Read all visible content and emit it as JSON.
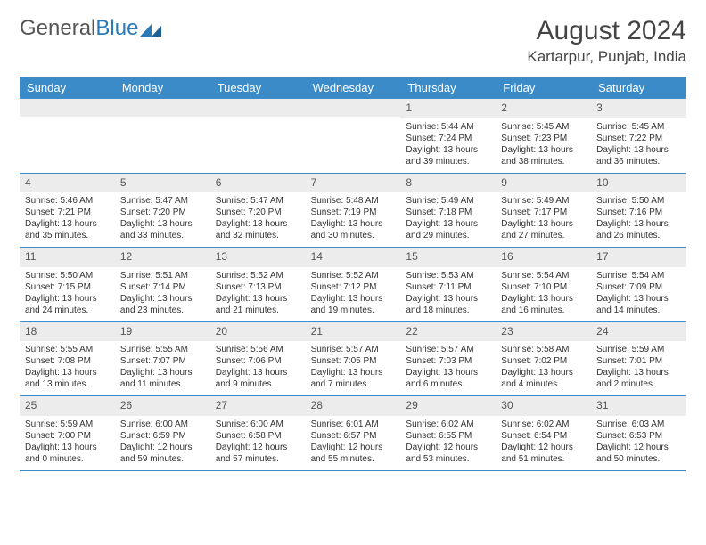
{
  "logo": {
    "text1": "General",
    "text2": "Blue"
  },
  "title": "August 2024",
  "location": "Kartarpur, Punjab, India",
  "colors": {
    "header_bg": "#3b8bc9",
    "header_text": "#ffffff",
    "daynum_bg": "#ececec",
    "week_border": "#3b8bc9",
    "logo_blue": "#2a7ab8"
  },
  "day_headers": [
    "Sunday",
    "Monday",
    "Tuesday",
    "Wednesday",
    "Thursday",
    "Friday",
    "Saturday"
  ],
  "weeks": [
    [
      {
        "day": "",
        "sunrise": "",
        "sunset": "",
        "daylight": ""
      },
      {
        "day": "",
        "sunrise": "",
        "sunset": "",
        "daylight": ""
      },
      {
        "day": "",
        "sunrise": "",
        "sunset": "",
        "daylight": ""
      },
      {
        "day": "",
        "sunrise": "",
        "sunset": "",
        "daylight": ""
      },
      {
        "day": "1",
        "sunrise": "Sunrise: 5:44 AM",
        "sunset": "Sunset: 7:24 PM",
        "daylight": "Daylight: 13 hours and 39 minutes."
      },
      {
        "day": "2",
        "sunrise": "Sunrise: 5:45 AM",
        "sunset": "Sunset: 7:23 PM",
        "daylight": "Daylight: 13 hours and 38 minutes."
      },
      {
        "day": "3",
        "sunrise": "Sunrise: 5:45 AM",
        "sunset": "Sunset: 7:22 PM",
        "daylight": "Daylight: 13 hours and 36 minutes."
      }
    ],
    [
      {
        "day": "4",
        "sunrise": "Sunrise: 5:46 AM",
        "sunset": "Sunset: 7:21 PM",
        "daylight": "Daylight: 13 hours and 35 minutes."
      },
      {
        "day": "5",
        "sunrise": "Sunrise: 5:47 AM",
        "sunset": "Sunset: 7:20 PM",
        "daylight": "Daylight: 13 hours and 33 minutes."
      },
      {
        "day": "6",
        "sunrise": "Sunrise: 5:47 AM",
        "sunset": "Sunset: 7:20 PM",
        "daylight": "Daylight: 13 hours and 32 minutes."
      },
      {
        "day": "7",
        "sunrise": "Sunrise: 5:48 AM",
        "sunset": "Sunset: 7:19 PM",
        "daylight": "Daylight: 13 hours and 30 minutes."
      },
      {
        "day": "8",
        "sunrise": "Sunrise: 5:49 AM",
        "sunset": "Sunset: 7:18 PM",
        "daylight": "Daylight: 13 hours and 29 minutes."
      },
      {
        "day": "9",
        "sunrise": "Sunrise: 5:49 AM",
        "sunset": "Sunset: 7:17 PM",
        "daylight": "Daylight: 13 hours and 27 minutes."
      },
      {
        "day": "10",
        "sunrise": "Sunrise: 5:50 AM",
        "sunset": "Sunset: 7:16 PM",
        "daylight": "Daylight: 13 hours and 26 minutes."
      }
    ],
    [
      {
        "day": "11",
        "sunrise": "Sunrise: 5:50 AM",
        "sunset": "Sunset: 7:15 PM",
        "daylight": "Daylight: 13 hours and 24 minutes."
      },
      {
        "day": "12",
        "sunrise": "Sunrise: 5:51 AM",
        "sunset": "Sunset: 7:14 PM",
        "daylight": "Daylight: 13 hours and 23 minutes."
      },
      {
        "day": "13",
        "sunrise": "Sunrise: 5:52 AM",
        "sunset": "Sunset: 7:13 PM",
        "daylight": "Daylight: 13 hours and 21 minutes."
      },
      {
        "day": "14",
        "sunrise": "Sunrise: 5:52 AM",
        "sunset": "Sunset: 7:12 PM",
        "daylight": "Daylight: 13 hours and 19 minutes."
      },
      {
        "day": "15",
        "sunrise": "Sunrise: 5:53 AM",
        "sunset": "Sunset: 7:11 PM",
        "daylight": "Daylight: 13 hours and 18 minutes."
      },
      {
        "day": "16",
        "sunrise": "Sunrise: 5:54 AM",
        "sunset": "Sunset: 7:10 PM",
        "daylight": "Daylight: 13 hours and 16 minutes."
      },
      {
        "day": "17",
        "sunrise": "Sunrise: 5:54 AM",
        "sunset": "Sunset: 7:09 PM",
        "daylight": "Daylight: 13 hours and 14 minutes."
      }
    ],
    [
      {
        "day": "18",
        "sunrise": "Sunrise: 5:55 AM",
        "sunset": "Sunset: 7:08 PM",
        "daylight": "Daylight: 13 hours and 13 minutes."
      },
      {
        "day": "19",
        "sunrise": "Sunrise: 5:55 AM",
        "sunset": "Sunset: 7:07 PM",
        "daylight": "Daylight: 13 hours and 11 minutes."
      },
      {
        "day": "20",
        "sunrise": "Sunrise: 5:56 AM",
        "sunset": "Sunset: 7:06 PM",
        "daylight": "Daylight: 13 hours and 9 minutes."
      },
      {
        "day": "21",
        "sunrise": "Sunrise: 5:57 AM",
        "sunset": "Sunset: 7:05 PM",
        "daylight": "Daylight: 13 hours and 7 minutes."
      },
      {
        "day": "22",
        "sunrise": "Sunrise: 5:57 AM",
        "sunset": "Sunset: 7:03 PM",
        "daylight": "Daylight: 13 hours and 6 minutes."
      },
      {
        "day": "23",
        "sunrise": "Sunrise: 5:58 AM",
        "sunset": "Sunset: 7:02 PM",
        "daylight": "Daylight: 13 hours and 4 minutes."
      },
      {
        "day": "24",
        "sunrise": "Sunrise: 5:59 AM",
        "sunset": "Sunset: 7:01 PM",
        "daylight": "Daylight: 13 hours and 2 minutes."
      }
    ],
    [
      {
        "day": "25",
        "sunrise": "Sunrise: 5:59 AM",
        "sunset": "Sunset: 7:00 PM",
        "daylight": "Daylight: 13 hours and 0 minutes."
      },
      {
        "day": "26",
        "sunrise": "Sunrise: 6:00 AM",
        "sunset": "Sunset: 6:59 PM",
        "daylight": "Daylight: 12 hours and 59 minutes."
      },
      {
        "day": "27",
        "sunrise": "Sunrise: 6:00 AM",
        "sunset": "Sunset: 6:58 PM",
        "daylight": "Daylight: 12 hours and 57 minutes."
      },
      {
        "day": "28",
        "sunrise": "Sunrise: 6:01 AM",
        "sunset": "Sunset: 6:57 PM",
        "daylight": "Daylight: 12 hours and 55 minutes."
      },
      {
        "day": "29",
        "sunrise": "Sunrise: 6:02 AM",
        "sunset": "Sunset: 6:55 PM",
        "daylight": "Daylight: 12 hours and 53 minutes."
      },
      {
        "day": "30",
        "sunrise": "Sunrise: 6:02 AM",
        "sunset": "Sunset: 6:54 PM",
        "daylight": "Daylight: 12 hours and 51 minutes."
      },
      {
        "day": "31",
        "sunrise": "Sunrise: 6:03 AM",
        "sunset": "Sunset: 6:53 PM",
        "daylight": "Daylight: 12 hours and 50 minutes."
      }
    ]
  ]
}
